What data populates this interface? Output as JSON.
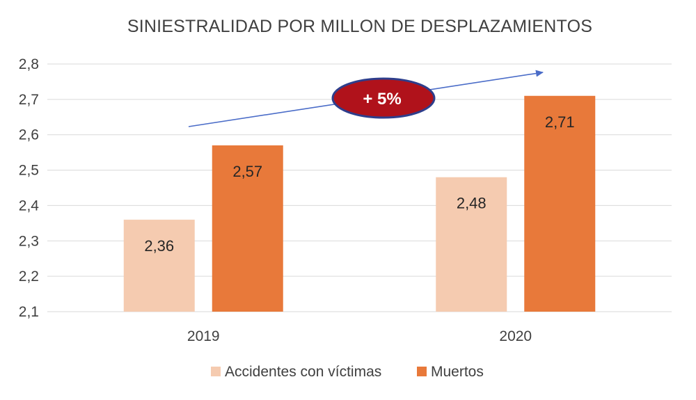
{
  "chart_data": {
    "type": "bar",
    "title": "SINIESTRALIDAD POR MILLON DE DESPLAZAMIENTOS",
    "categories": [
      "2019",
      "2020"
    ],
    "series": [
      {
        "name": "Accidentes con víctimas",
        "values": [
          2.36,
          2.48
        ],
        "labels": [
          "2,36",
          "2,48"
        ],
        "color": "#F5CBB0"
      },
      {
        "name": "Muertos",
        "values": [
          2.57,
          2.71
        ],
        "labels": [
          "2,57",
          "2,71"
        ],
        "color": "#E8793A"
      }
    ],
    "ylim": [
      2.1,
      2.8
    ],
    "yticks": [
      2.1,
      2.2,
      2.3,
      2.4,
      2.5,
      2.6,
      2.7,
      2.8
    ],
    "ytick_labels": [
      "2,1",
      "2,2",
      "2,3",
      "2,4",
      "2,5",
      "2,6",
      "2,7",
      "2,8"
    ],
    "xlabel": "",
    "ylabel": "",
    "grid": true,
    "legend_position": "bottom",
    "annotation": {
      "text": "+ 5%",
      "fill_color": "#B0121B",
      "border_color": "#2E3E8C",
      "arrow_color": "#4A6CC8"
    },
    "colors": {
      "grid": "#D9D9D9",
      "text": "#404040"
    }
  }
}
